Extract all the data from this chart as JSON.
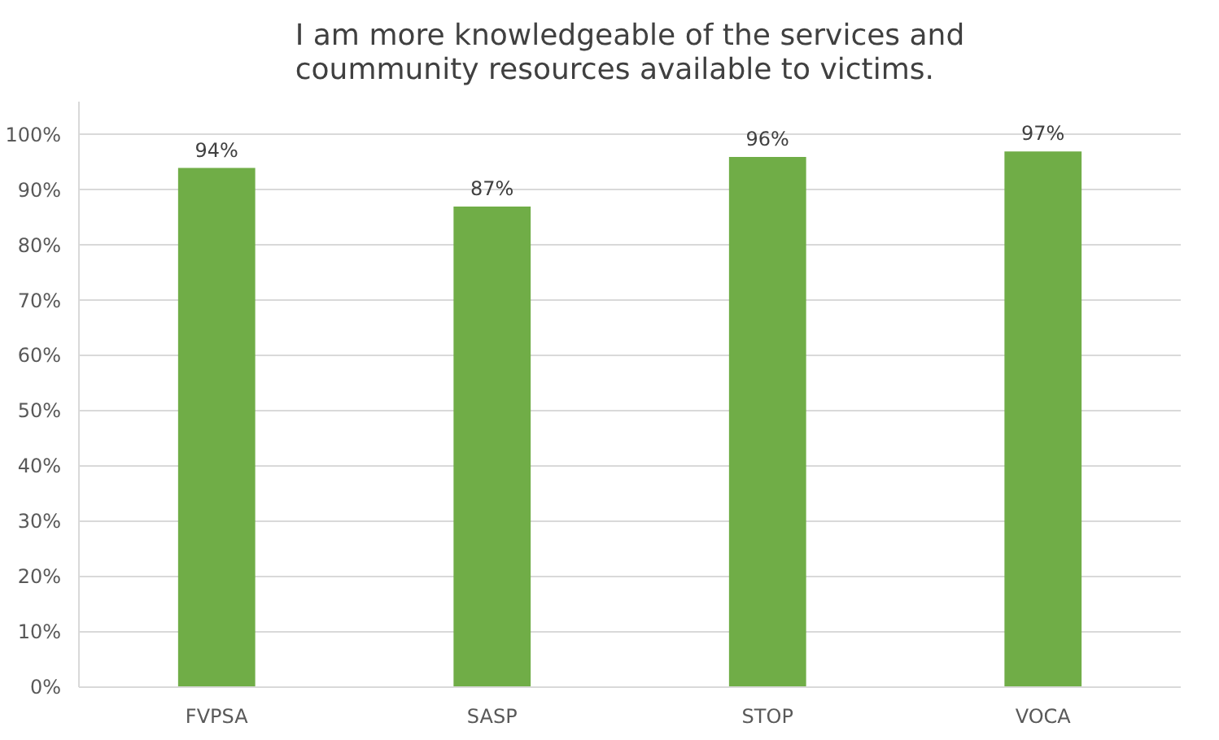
{
  "chart_data": {
    "type": "bar",
    "title": "I am more knowledgeable of the services and coummunity resources available to victims.",
    "categories": [
      "FVPSA",
      "SASP",
      "STOP",
      "VOCA"
    ],
    "values": [
      94,
      87,
      96,
      97
    ],
    "value_labels": [
      "94%",
      "87%",
      "96%",
      "97%"
    ],
    "color": "#70ad47",
    "ylim": [
      0,
      106
    ],
    "yticks": [
      {
        "value": 0,
        "label": "0%"
      },
      {
        "value": 10,
        "label": "10%"
      },
      {
        "value": 20,
        "label": "20%"
      },
      {
        "value": 30,
        "label": "30%"
      },
      {
        "value": 40,
        "label": "40%"
      },
      {
        "value": 50,
        "label": "50%"
      },
      {
        "value": 60,
        "label": "60%"
      },
      {
        "value": 70,
        "label": "70%"
      },
      {
        "value": 80,
        "label": "80%"
      },
      {
        "value": 90,
        "label": "90%"
      },
      {
        "value": 100,
        "label": "100%"
      }
    ],
    "grid": "y"
  }
}
